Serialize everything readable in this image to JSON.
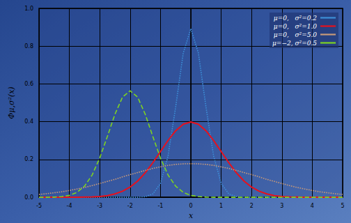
{
  "chart_data": {
    "type": "line",
    "x_label": "x",
    "y_label": "Φμ,σ²(x)",
    "x": [
      -5,
      -4.75,
      -4.5,
      -4.25,
      -4,
      -3.75,
      -3.5,
      -3.25,
      -3,
      -2.75,
      -2.5,
      -2.25,
      -2,
      -1.75,
      -1.5,
      -1.25,
      -1,
      -0.75,
      -0.5,
      -0.25,
      0,
      0.25,
      0.5,
      0.75,
      1,
      1.25,
      1.5,
      1.75,
      2,
      2.25,
      2.5,
      2.75,
      3,
      3.25,
      3.5,
      3.75,
      4,
      4.25,
      4.5,
      4.75,
      5
    ],
    "series": [
      {
        "name": "μ=0,   σ²=0.2",
        "color": "#3d8fd8",
        "line_style": "dotted",
        "values": [
          0,
          0,
          0,
          0,
          0,
          0,
          0,
          0,
          0,
          0,
          0,
          0,
          0,
          0,
          0.003,
          0.018,
          0.073,
          0.219,
          0.477,
          0.763,
          0.892,
          0.763,
          0.477,
          0.219,
          0.073,
          0.018,
          0.003,
          0,
          0,
          0,
          0,
          0,
          0,
          0,
          0,
          0,
          0,
          0,
          0,
          0,
          0
        ]
      },
      {
        "name": "μ=0,   σ²=1.0",
        "color": "#e8101c",
        "line_style": "solid",
        "values": [
          0,
          0,
          0,
          0,
          0,
          0,
          0.001,
          0.002,
          0.004,
          0.009,
          0.018,
          0.032,
          0.054,
          0.086,
          0.13,
          0.183,
          0.242,
          0.301,
          0.352,
          0.387,
          0.399,
          0.387,
          0.352,
          0.301,
          0.242,
          0.183,
          0.13,
          0.086,
          0.054,
          0.032,
          0.018,
          0.009,
          0.004,
          0.002,
          0.001,
          0,
          0,
          0,
          0,
          0,
          0
        ]
      },
      {
        "name": "μ=0,   σ²=5.0",
        "color": "#c89a7a",
        "line_style": "dotted",
        "values": [
          0.015,
          0.019,
          0.024,
          0.029,
          0.036,
          0.044,
          0.052,
          0.062,
          0.073,
          0.084,
          0.095,
          0.108,
          0.12,
          0.131,
          0.142,
          0.153,
          0.161,
          0.169,
          0.174,
          0.177,
          0.178,
          0.177,
          0.174,
          0.169,
          0.161,
          0.153,
          0.142,
          0.131,
          0.12,
          0.108,
          0.095,
          0.084,
          0.073,
          0.062,
          0.052,
          0.044,
          0.036,
          0.029,
          0.024,
          0.019,
          0.015
        ]
      },
      {
        "name": "μ=−2, σ²=0.5",
        "color": "#7ed321",
        "line_style": "dashed",
        "values": [
          0,
          0,
          0.001,
          0.004,
          0.01,
          0.026,
          0.059,
          0.118,
          0.208,
          0.321,
          0.439,
          0.53,
          0.564,
          0.53,
          0.439,
          0.321,
          0.208,
          0.118,
          0.059,
          0.026,
          0.01,
          0.004,
          0.001,
          0,
          0,
          0,
          0,
          0,
          0,
          0,
          0,
          0,
          0,
          0,
          0,
          0,
          0,
          0,
          0,
          0,
          0
        ]
      }
    ],
    "xlim": [
      -5,
      5
    ],
    "xticks": [
      -5,
      -4,
      -3,
      -2,
      -1,
      0,
      1,
      2,
      3,
      4,
      5
    ],
    "ylim": [
      0,
      1
    ],
    "yticks": [
      {
        "value": 0,
        "label": "0.0"
      },
      0.2,
      0.4,
      0.6,
      0.8,
      {
        "value": 1,
        "label": "1.0"
      }
    ],
    "grid": true,
    "legend": "upper right",
    "marker": "none"
  }
}
